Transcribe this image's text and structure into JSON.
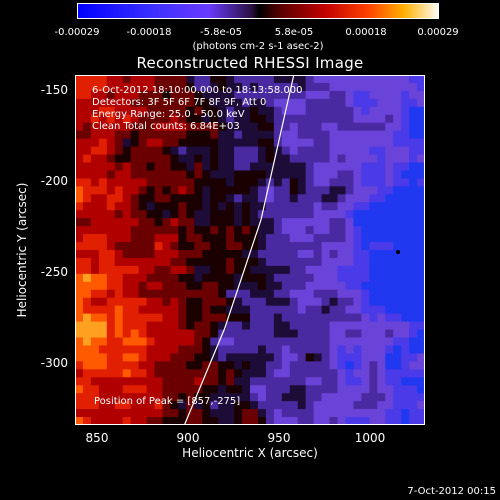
{
  "colorbar": {
    "ticks": [
      "-0.00029",
      "-0.00018",
      "-5.8e-05",
      "5.8e-05",
      "0.00018",
      "0.00029"
    ],
    "unit": "(photons cm-2 s-1 asec-2)",
    "range": [
      -0.00029,
      0.00029
    ]
  },
  "chart_data": {
    "type": "heatmap",
    "title": "Reconstructed RHESSI Image",
    "xlabel": "Heliocentric X (arcsec)",
    "ylabel": "Heliocentric Y (arcsec)",
    "xlim": [
      838,
      1030
    ],
    "ylim": [
      -333,
      -140
    ],
    "xticks": [
      "850",
      "900",
      "950",
      "1000"
    ],
    "xtick_values": [
      850,
      900,
      950,
      1000
    ],
    "yticks": [
      "-150",
      "-200",
      "-250",
      "-300"
    ],
    "ytick_values": [
      -150,
      -200,
      -250,
      -300
    ],
    "annotations": {
      "time": "6-Oct-2012 18:10:00.000 to 18:13:58.000",
      "detectors": "Detectors: 3F 5F 6F 7F 8F 9F, Att 0",
      "energy": "Energy Range: 25.0 - 50.0 keV",
      "clean": "Clean     Total counts: 6.84E+03",
      "peak": "Position of Peak = [857,-275]"
    },
    "peak": {
      "x": 857,
      "y": -275
    },
    "limb_points": [
      [
        898,
        -333
      ],
      [
        920,
        -280
      ],
      [
        940,
        -220
      ],
      [
        958,
        -140
      ]
    ]
  },
  "footer": {
    "date": "7-Oct-2012 00:15"
  }
}
